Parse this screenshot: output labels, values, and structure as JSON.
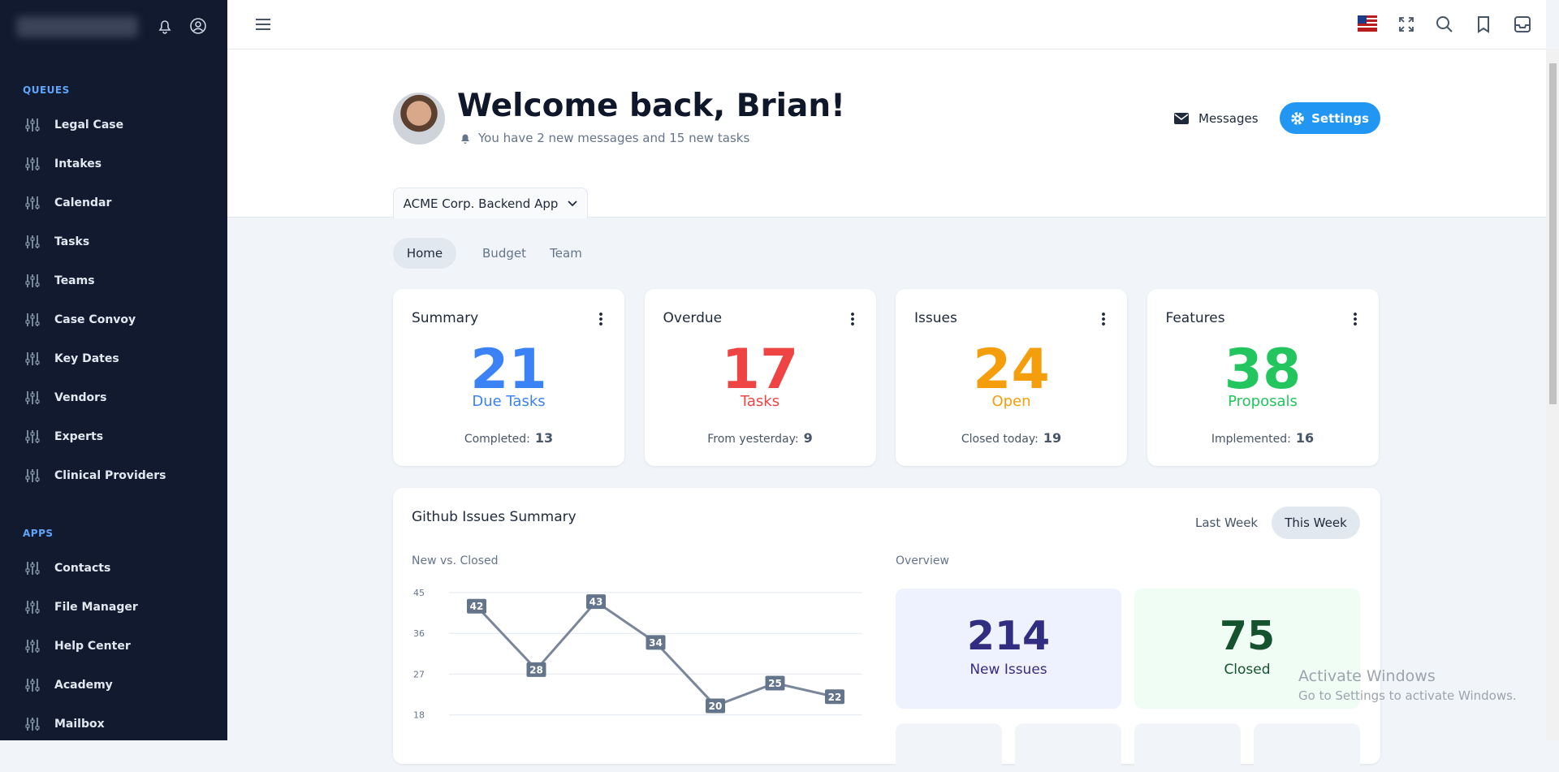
{
  "sidebar": {
    "sections": [
      {
        "title": "QUEUES",
        "items": [
          "Legal Case",
          "Intakes",
          "Calendar",
          "Tasks",
          "Teams",
          "Case Convoy",
          "Key Dates",
          "Vendors",
          "Experts",
          "Clinical Providers"
        ]
      },
      {
        "title": "APPS",
        "items": [
          "Contacts",
          "File Manager",
          "Help Center",
          "Academy",
          "Mailbox"
        ]
      }
    ]
  },
  "header": {
    "title": "Welcome back, Brian!",
    "subtitle": "You have 2 new messages and 15 new tasks",
    "messages": "Messages",
    "settings": "Settings"
  },
  "project": "ACME Corp. Backend App",
  "tabs": [
    "Home",
    "Budget",
    "Team"
  ],
  "cards": [
    {
      "title": "Summary",
      "value": 21,
      "label": "Due Tasks",
      "footer_label": "Completed:",
      "footer_value": 13,
      "color": "#3b82f6"
    },
    {
      "title": "Overdue",
      "value": 17,
      "label": "Tasks",
      "footer_label": "From yesterday:",
      "footer_value": 9,
      "color": "#ef4444"
    },
    {
      "title": "Issues",
      "value": 24,
      "label": "Open",
      "footer_label": "Closed today:",
      "footer_value": 19,
      "color": "#f59e0b"
    },
    {
      "title": "Features",
      "value": 38,
      "label": "Proposals",
      "footer_label": "Implemented:",
      "footer_value": 16,
      "color": "#22c55e"
    }
  ],
  "github": {
    "title": "Github Issues Summary",
    "periods": [
      "Last Week",
      "This Week"
    ],
    "chart": {
      "type": "line",
      "title": "New vs. Closed",
      "values": [
        42,
        28,
        43,
        34,
        20,
        25,
        22
      ],
      "color": "#7a8699",
      "ylim": [
        0,
        45
      ],
      "yticks": [
        45,
        36,
        27,
        18
      ],
      "grid": true
    },
    "overview": {
      "title": "Overview",
      "items": [
        {
          "value": 214,
          "label": "New Issues"
        },
        {
          "value": 75,
          "label": "Closed"
        }
      ]
    }
  },
  "watermark": {
    "title": "Activate Windows",
    "text": "Go to Settings to activate Windows."
  }
}
